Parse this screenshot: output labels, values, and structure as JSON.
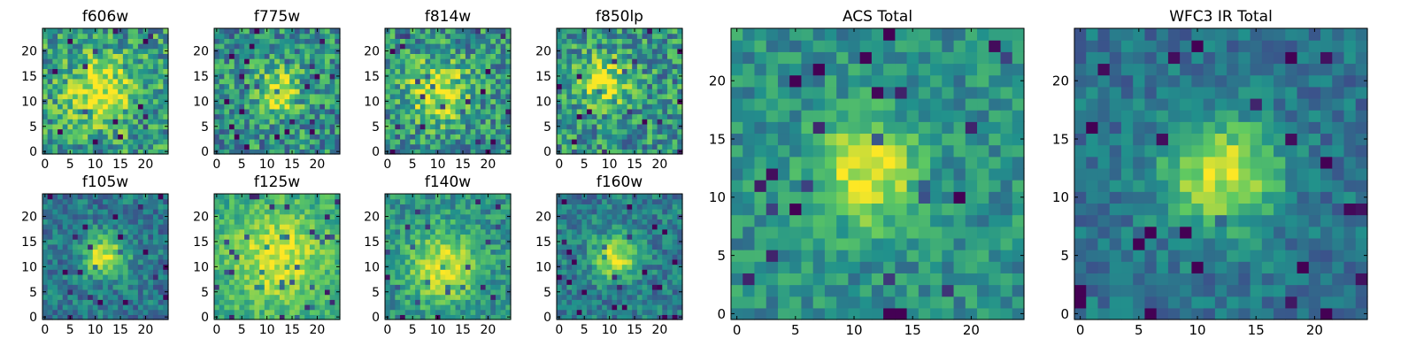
{
  "colormap": [
    "#440154",
    "#3b528b",
    "#21918c",
    "#5ec962",
    "#fde725"
  ],
  "chart_data": [
    {
      "type": "heatmap",
      "title": "f606w",
      "grid_size": 25,
      "xticks": [
        "0",
        "5",
        "10",
        "15",
        "20"
      ],
      "yticks": [
        "0",
        "5",
        "10",
        "15",
        "20"
      ],
      "source_center": [
        11,
        12
      ],
      "source_sigma": 4.5,
      "peak": 0.45,
      "base": 0.55,
      "noise": 0.55,
      "seed": 11
    },
    {
      "type": "heatmap",
      "title": "f775w",
      "grid_size": 25,
      "xticks": [
        "0",
        "5",
        "10",
        "15",
        "20"
      ],
      "yticks": [
        "0",
        "5",
        "10",
        "15",
        "20"
      ],
      "source_center": [
        12,
        12
      ],
      "source_sigma": 3.5,
      "peak": 0.4,
      "base": 0.5,
      "noise": 0.55,
      "seed": 23
    },
    {
      "type": "heatmap",
      "title": "f814w",
      "grid_size": 25,
      "xticks": [
        "0",
        "5",
        "10",
        "15",
        "20"
      ],
      "yticks": [
        "0",
        "5",
        "10",
        "15",
        "20"
      ],
      "source_center": [
        10,
        12
      ],
      "source_sigma": 4.5,
      "peak": 0.45,
      "base": 0.5,
      "noise": 0.55,
      "seed": 37
    },
    {
      "type": "heatmap",
      "title": "f850lp",
      "grid_size": 25,
      "xticks": [
        "0",
        "5",
        "10",
        "15",
        "20"
      ],
      "yticks": [
        "0",
        "5",
        "10",
        "15",
        "20"
      ],
      "source_center": [
        9,
        14
      ],
      "source_sigma": 3.5,
      "peak": 0.4,
      "base": 0.52,
      "noise": 0.55,
      "seed": 41
    },
    {
      "type": "heatmap",
      "title": "f105w",
      "grid_size": 25,
      "xticks": [
        "0",
        "5",
        "10",
        "15",
        "20"
      ],
      "yticks": [
        "0",
        "5",
        "10",
        "15",
        "20"
      ],
      "source_center": [
        12,
        12
      ],
      "source_sigma": 3,
      "peak": 0.55,
      "base": 0.4,
      "noise": 0.35,
      "seed": 53
    },
    {
      "type": "heatmap",
      "title": "f125w",
      "grid_size": 25,
      "xticks": [
        "0",
        "5",
        "10",
        "15",
        "20"
      ],
      "yticks": [
        "0",
        "5",
        "10",
        "15",
        "20"
      ],
      "source_center": [
        12,
        12
      ],
      "source_sigma": 6,
      "peak": 0.35,
      "base": 0.62,
      "noise": 0.3,
      "seed": 67
    },
    {
      "type": "heatmap",
      "title": "f140w",
      "grid_size": 25,
      "xticks": [
        "0",
        "5",
        "10",
        "15",
        "20"
      ],
      "yticks": [
        "0",
        "5",
        "10",
        "15",
        "20"
      ],
      "source_center": [
        11,
        10
      ],
      "source_sigma": 5,
      "peak": 0.45,
      "base": 0.5,
      "noise": 0.35,
      "seed": 79
    },
    {
      "type": "heatmap",
      "title": "f160w",
      "grid_size": 25,
      "xticks": [
        "0",
        "5",
        "10",
        "15",
        "20"
      ],
      "yticks": [
        "0",
        "5",
        "10",
        "15",
        "20"
      ],
      "source_center": [
        11,
        12
      ],
      "source_sigma": 3,
      "peak": 0.55,
      "base": 0.42,
      "noise": 0.35,
      "seed": 83
    },
    {
      "type": "heatmap",
      "title": "ACS Total",
      "grid_size": 25,
      "xticks": [
        "0",
        "5",
        "10",
        "15",
        "20"
      ],
      "yticks": [
        "0",
        "5",
        "10",
        "15",
        "20"
      ],
      "source_center": [
        11,
        12
      ],
      "source_sigma": 3,
      "peak": 0.5,
      "base": 0.5,
      "noise": 0.32,
      "seed": 97
    },
    {
      "type": "heatmap",
      "title": "WFC3 IR Total",
      "grid_size": 25,
      "xticks": [
        "0",
        "5",
        "10",
        "15",
        "20"
      ],
      "yticks": [
        "0",
        "5",
        "10",
        "15",
        "20"
      ],
      "source_center": [
        12,
        12
      ],
      "source_sigma": 3.5,
      "peak": 0.55,
      "base": 0.38,
      "noise": 0.28,
      "seed": 101
    }
  ]
}
